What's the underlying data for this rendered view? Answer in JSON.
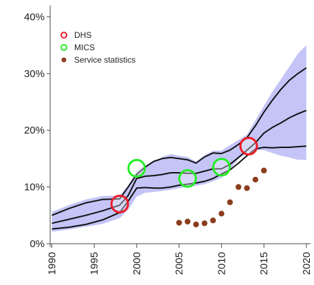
{
  "chart_data": {
    "type": "line",
    "x_ticks": [
      "1990",
      "1995",
      "2000",
      "2005",
      "2010",
      "2015",
      "2020"
    ],
    "y_ticks": [
      "0%",
      "10%",
      "20%",
      "30%",
      "40%"
    ],
    "xlim": [
      1989.8,
      2020.5
    ],
    "ylim": [
      0,
      42
    ],
    "grid": false,
    "legend_position": "top-left",
    "legend": [
      "DHS",
      "MICS",
      "Service statistics"
    ],
    "colors": {
      "band": "#c4c4f7",
      "line": "#111111",
      "dhs": "#ee1c25",
      "mics": "#22ee22",
      "service": "#8b3e1e",
      "axis": "#444444"
    },
    "uncertainty_band": {
      "x": [
        1990,
        1992,
        1994,
        1996,
        1998,
        1999,
        2000,
        2001,
        2002,
        2003,
        2004,
        2005,
        2006,
        2007,
        2008,
        2009,
        2010,
        2011,
        2012,
        2013,
        2014,
        2015,
        2016,
        2017,
        2018,
        2019,
        2020
      ],
      "upper": [
        5.6,
        6.8,
        7.8,
        8.4,
        8.5,
        10.3,
        12.8,
        13.8,
        14.5,
        15.3,
        15.8,
        15.5,
        15.3,
        14.5,
        15.6,
        16.4,
        16.4,
        17.4,
        18.3,
        19.2,
        21.8,
        24.3,
        26.8,
        29.0,
        31.2,
        33.5,
        35.0
      ],
      "lower": [
        2.1,
        2.5,
        3.0,
        3.5,
        4.5,
        6.0,
        8.3,
        9.0,
        9.1,
        9.3,
        9.5,
        9.8,
        10.0,
        10.2,
        10.5,
        11.0,
        11.6,
        13.0,
        15.0,
        16.0,
        16.5,
        16.5,
        16.0,
        15.5,
        15.2,
        14.8,
        14.8
      ]
    },
    "series": [
      {
        "x": [
          1990,
          1992,
          1994,
          1996,
          1998,
          1999,
          2000,
          2001,
          2002,
          2003,
          2004,
          2005,
          2006,
          2007,
          2008,
          2009,
          2010,
          2011,
          2012,
          2013,
          2014,
          2015,
          2016,
          2017,
          2018,
          2019,
          2020
        ],
        "values": [
          5.0,
          6.2,
          7.2,
          7.8,
          7.9,
          10.0,
          12.2,
          13.5,
          14.5,
          15.0,
          15.2,
          15.0,
          14.8,
          14.2,
          15.3,
          16.0,
          15.9,
          16.5,
          17.5,
          18.7,
          20.8,
          23.2,
          25.3,
          27.2,
          28.8,
          30.0,
          31.0
        ]
      },
      {
        "x": [
          1990,
          1992,
          1994,
          1996,
          1998,
          1999,
          2000,
          2001,
          2002,
          2003,
          2004,
          2005,
          2006,
          2007,
          2008,
          2009,
          2010,
          2011,
          2012,
          2013,
          2014,
          2015,
          2016,
          2017,
          2018,
          2019,
          2020
        ],
        "values": [
          3.6,
          4.3,
          5.0,
          5.8,
          6.8,
          8.5,
          11.5,
          11.9,
          12.0,
          12.2,
          12.5,
          12.5,
          12.4,
          12.4,
          12.8,
          13.2,
          13.2,
          14.0,
          15.2,
          16.5,
          17.8,
          19.5,
          20.5,
          21.3,
          22.2,
          22.9,
          23.5
        ]
      },
      {
        "x": [
          1990,
          1992,
          1994,
          1996,
          1998,
          1999,
          2000,
          2001,
          2002,
          2003,
          2004,
          2005,
          2006,
          2007,
          2008,
          2009,
          2010,
          2011,
          2012,
          2013,
          2014,
          2015,
          2016,
          2017,
          2018,
          2019,
          2020
        ],
        "values": [
          2.6,
          2.9,
          3.4,
          4.2,
          5.5,
          7.5,
          9.8,
          9.9,
          9.8,
          9.8,
          10.0,
          10.3,
          10.5,
          10.7,
          11.0,
          11.5,
          12.3,
          13.0,
          14.2,
          15.5,
          16.7,
          17.0,
          16.9,
          17.0,
          17.0,
          17.1,
          17.2
        ]
      }
    ],
    "dhs_points": [
      {
        "x": 1998.0,
        "y": 7.0
      },
      {
        "x": 2013.2,
        "y": 17.2
      }
    ],
    "mics_points": [
      {
        "x": 2000.0,
        "y": 13.3
      },
      {
        "x": 2006.0,
        "y": 11.5
      },
      {
        "x": 2010.0,
        "y": 13.5
      }
    ],
    "service_points": [
      {
        "x": 2005.0,
        "y": 3.7
      },
      {
        "x": 2006.0,
        "y": 3.9
      },
      {
        "x": 2007.0,
        "y": 3.4
      },
      {
        "x": 2008.0,
        "y": 3.6
      },
      {
        "x": 2009.0,
        "y": 4.1
      },
      {
        "x": 2010.0,
        "y": 5.3
      },
      {
        "x": 2011.0,
        "y": 7.3
      },
      {
        "x": 2012.0,
        "y": 10.0
      },
      {
        "x": 2013.0,
        "y": 9.8
      },
      {
        "x": 2014.0,
        "y": 11.3
      },
      {
        "x": 2015.0,
        "y": 12.9
      }
    ]
  }
}
